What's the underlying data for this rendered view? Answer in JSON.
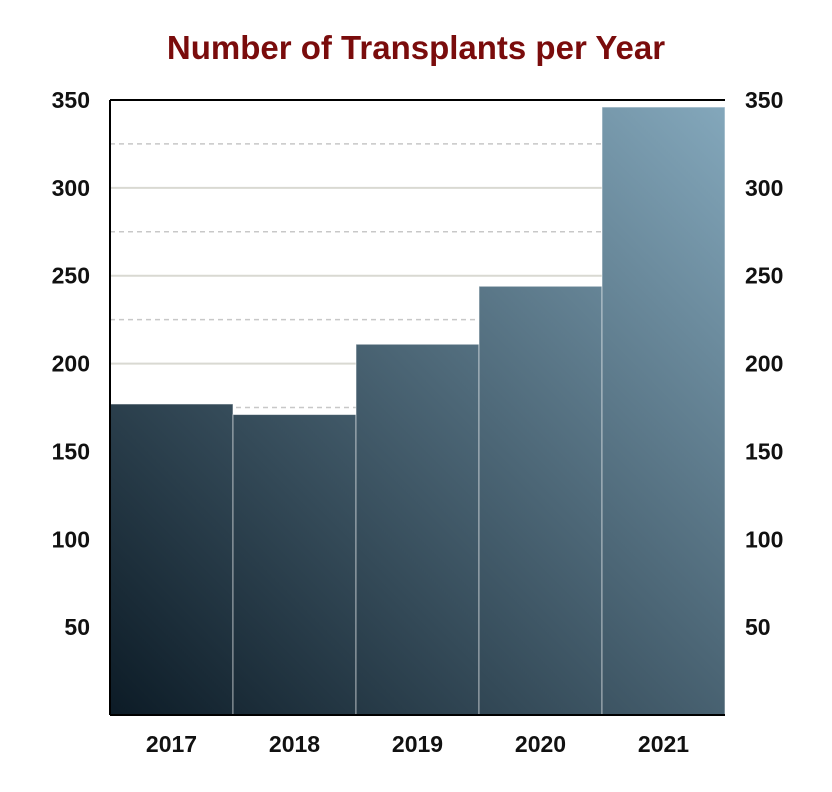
{
  "chart_data": {
    "type": "bar",
    "title": "Number of Transplants per Year",
    "xlabel": "",
    "ylabel": "",
    "categories": [
      "2017",
      "2018",
      "2019",
      "2020",
      "2021"
    ],
    "series": [
      {
        "values": [
          177,
          171,
          211,
          244,
          346
        ]
      }
    ],
    "ylim": [
      0,
      350
    ],
    "yticks": [
      50,
      100,
      150,
      200,
      250,
      300,
      350
    ],
    "ytick_labels": [
      "50",
      "100",
      "150",
      "200",
      "250",
      "300",
      "350"
    ],
    "y_axis_sides": [
      "left",
      "right"
    ],
    "grid": "major solid at 50-unit ticks, minor dashed at midpoints",
    "legend": "none",
    "colors": {
      "title": "#7a0c0c",
      "bar_gradient_dark": "#0c1b26",
      "bar_gradient_light": "#84a8bc",
      "grid_major": "#d9d9d2",
      "grid_minor": "#c8c8c8",
      "frame": "#000000"
    }
  }
}
